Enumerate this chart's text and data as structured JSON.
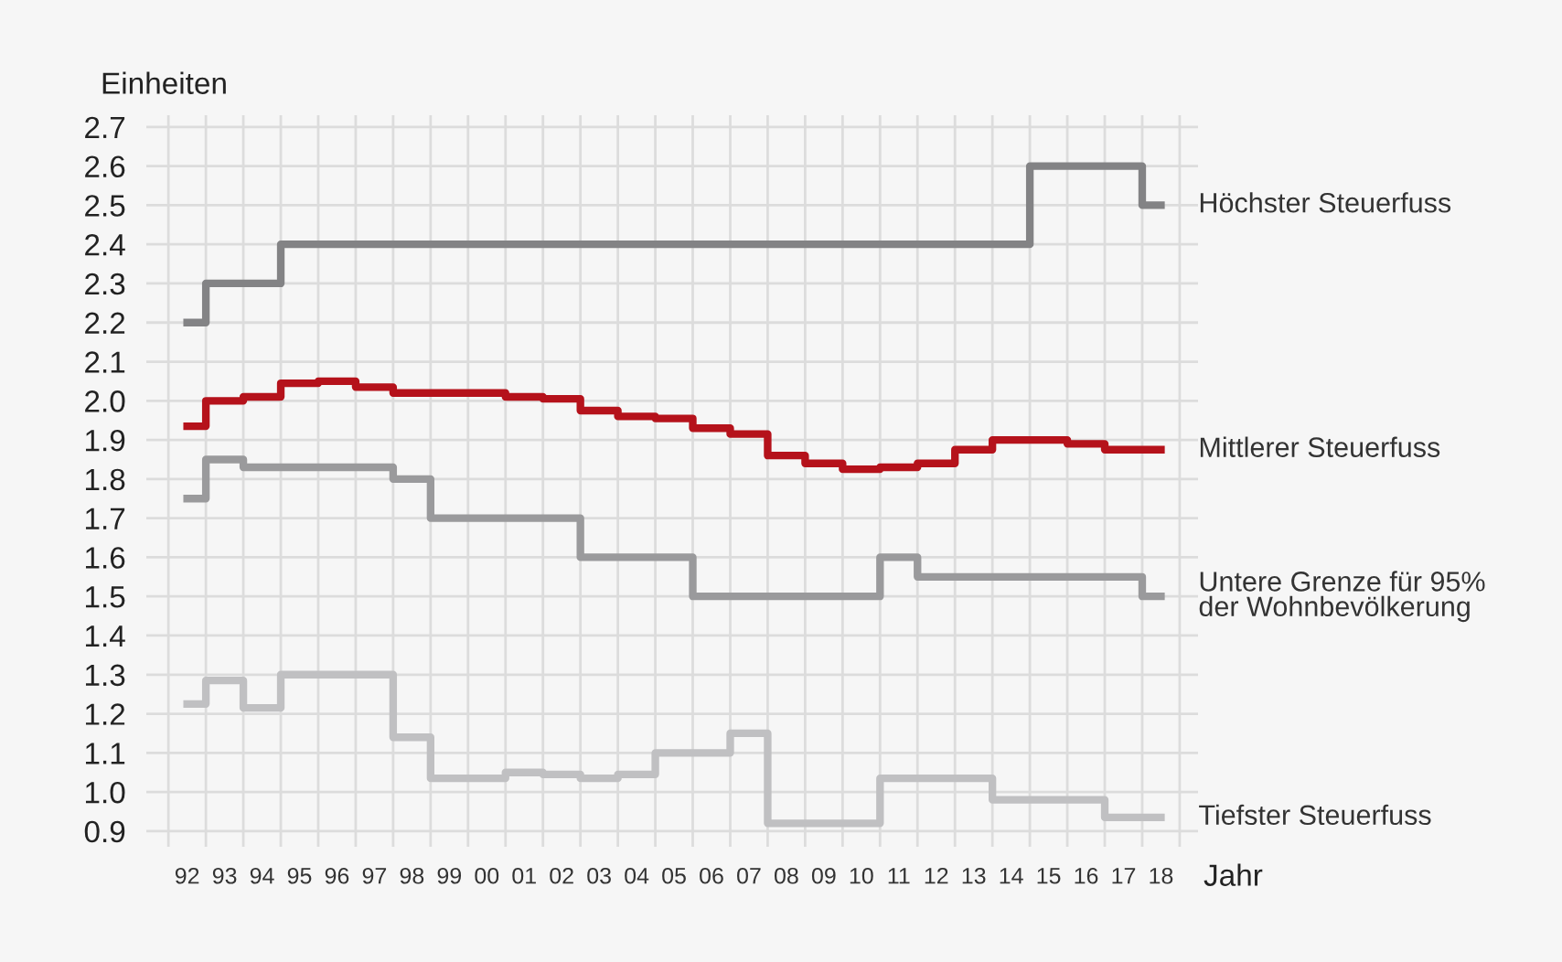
{
  "chart_data": {
    "type": "step",
    "ylabel": "Einheiten",
    "xlabel": "Jahr",
    "categories": [
      "92",
      "93",
      "94",
      "95",
      "96",
      "97",
      "98",
      "99",
      "00",
      "01",
      "02",
      "03",
      "04",
      "05",
      "06",
      "07",
      "08",
      "09",
      "10",
      "11",
      "12",
      "13",
      "14",
      "15",
      "16",
      "17",
      "18"
    ],
    "series": [
      {
        "name": "Höchster Steuerfuss",
        "color": "#838385",
        "values": [
          2.2,
          2.3,
          2.3,
          2.4,
          2.4,
          2.4,
          2.4,
          2.4,
          2.4,
          2.4,
          2.4,
          2.4,
          2.4,
          2.4,
          2.4,
          2.4,
          2.4,
          2.4,
          2.4,
          2.4,
          2.4,
          2.4,
          2.4,
          2.6,
          2.6,
          2.6,
          2.5
        ]
      },
      {
        "name": "Mittlerer Steuerfuss",
        "color": "#b5121b",
        "values": [
          1.935,
          2.0,
          2.01,
          2.045,
          2.05,
          2.035,
          2.02,
          2.02,
          2.02,
          2.01,
          2.005,
          1.975,
          1.96,
          1.955,
          1.93,
          1.915,
          1.86,
          1.84,
          1.825,
          1.83,
          1.84,
          1.875,
          1.9,
          1.9,
          1.89,
          1.875,
          1.875
        ]
      },
      {
        "name": "Untere Grenze für 95%\nder Wohnbevölkerung",
        "color": "#9a9a9c",
        "values": [
          1.75,
          1.85,
          1.83,
          1.83,
          1.83,
          1.83,
          1.8,
          1.7,
          1.7,
          1.7,
          1.7,
          1.6,
          1.6,
          1.6,
          1.5,
          1.5,
          1.5,
          1.5,
          1.5,
          1.6,
          1.55,
          1.55,
          1.55,
          1.55,
          1.55,
          1.55,
          1.5
        ]
      },
      {
        "name": "Tiefster Steuerfuss",
        "color": "#c0c0c2",
        "values": [
          1.225,
          1.285,
          1.215,
          1.3,
          1.3,
          1.3,
          1.14,
          1.035,
          1.035,
          1.05,
          1.045,
          1.035,
          1.045,
          1.1,
          1.1,
          1.15,
          0.92,
          0.92,
          0.92,
          1.035,
          1.035,
          1.035,
          0.98,
          0.98,
          0.98,
          0.935,
          0.935
        ]
      }
    ],
    "ylim": [
      0.86,
      2.73
    ],
    "yticks": [
      0.9,
      {
        "value": 1,
        "label": "1.0"
      },
      1.1,
      1.2,
      1.3,
      1.4,
      1.5,
      1.6,
      1.7,
      1.8,
      1.9,
      {
        "value": 2,
        "label": "2.0"
      },
      2.1,
      2.2,
      2.3,
      2.4,
      2.5,
      2.6,
      2.7
    ],
    "grid": true,
    "legend": false,
    "line_style": "solid"
  }
}
